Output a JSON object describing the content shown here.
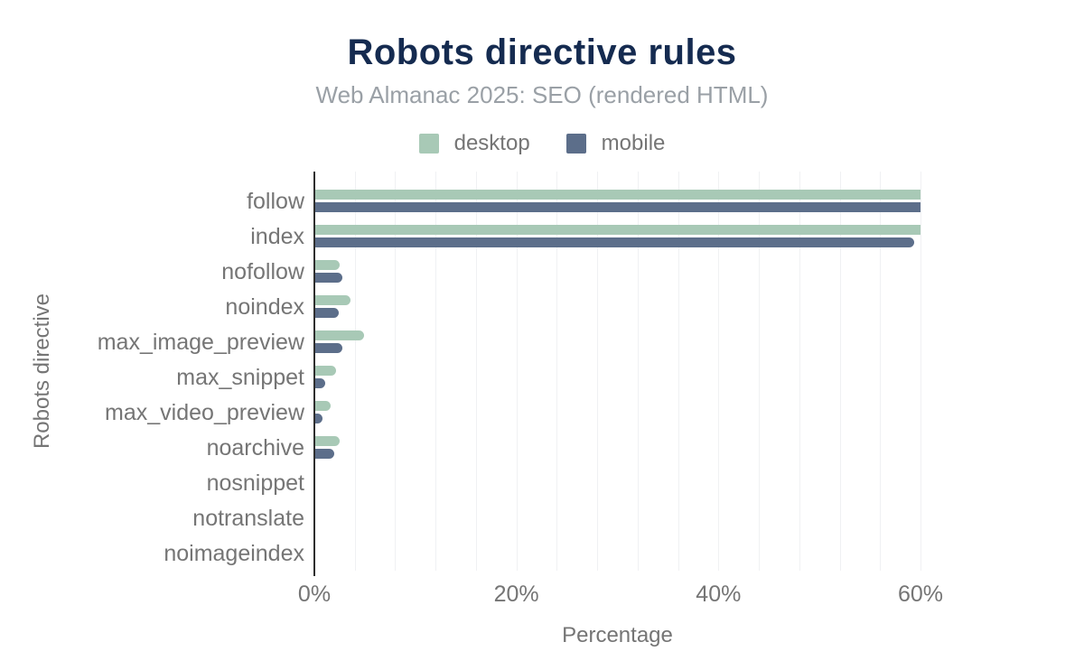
{
  "chart_data": {
    "type": "bar",
    "orientation": "horizontal",
    "title": "Robots directive rules",
    "subtitle": "Web Almanac 2025: SEO (rendered HTML)",
    "xlabel": "Percentage",
    "ylabel": "Robots directive",
    "xlim": [
      0,
      60
    ],
    "x_ticks": [
      {
        "value": 0,
        "label": "0%"
      },
      {
        "value": 20,
        "label": "20%"
      },
      {
        "value": 40,
        "label": "40%"
      },
      {
        "value": 60,
        "label": "60%"
      }
    ],
    "minor_grid_step_pct": 4,
    "grid": true,
    "legend_position": "top",
    "categories": [
      "follow",
      "index",
      "nofollow",
      "noindex",
      "max_image_preview",
      "max_snippet",
      "max_video_preview",
      "noarchive",
      "nosnippet",
      "notranslate",
      "noimageindex"
    ],
    "series": [
      {
        "name": "desktop",
        "color": "#a8c9b6",
        "values": [
          60.0,
          60.0,
          2.4,
          3.5,
          4.8,
          2.1,
          1.5,
          2.4,
          0,
          0,
          0
        ]
      },
      {
        "name": "mobile",
        "color": "#5c6e8a",
        "values": [
          60.0,
          59.3,
          2.7,
          2.3,
          2.7,
          1.0,
          0.7,
          1.9,
          0,
          0,
          0
        ]
      }
    ]
  },
  "colors": {
    "title": "#152b50",
    "subtitle": "#9aa0a6",
    "axis_text": "#757575",
    "axis_line": "#2e2e2e",
    "gridline": "#f0f1f3",
    "background": "#ffffff"
  }
}
